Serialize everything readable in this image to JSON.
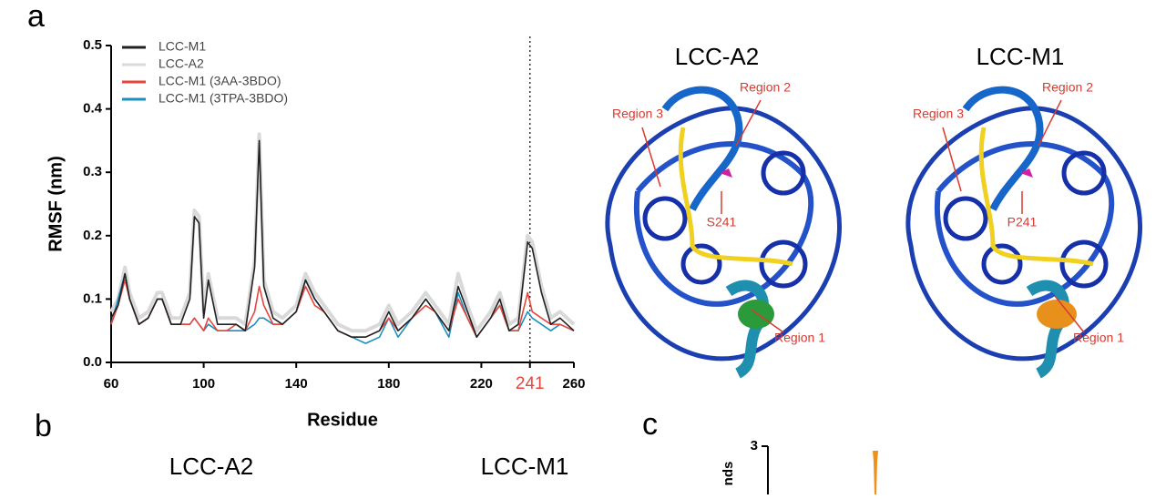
{
  "panel_labels": [
    "a",
    "b",
    "c"
  ],
  "chart_data": {
    "type": "line",
    "xlabel": "Residue",
    "ylabel": "RMSF (nm)",
    "x": [
      60,
      63,
      66,
      68,
      72,
      76,
      80,
      82,
      86,
      90,
      94,
      96,
      98,
      100,
      102,
      106,
      110,
      114,
      118,
      122,
      124,
      126,
      130,
      134,
      140,
      144,
      148,
      152,
      158,
      164,
      170,
      176,
      180,
      184,
      190,
      196,
      200,
      206,
      210,
      214,
      218,
      224,
      228,
      232,
      236,
      240,
      242,
      246,
      250,
      254,
      260
    ],
    "series": [
      {
        "name": "LCC-M1",
        "color": "#222222",
        "values": [
          0.07,
          0.09,
          0.14,
          0.1,
          0.06,
          0.07,
          0.1,
          0.1,
          0.06,
          0.06,
          0.1,
          0.23,
          0.22,
          0.07,
          0.13,
          0.06,
          0.06,
          0.06,
          0.05,
          0.15,
          0.35,
          0.12,
          0.07,
          0.06,
          0.08,
          0.13,
          0.1,
          0.08,
          0.05,
          0.04,
          0.04,
          0.05,
          0.08,
          0.05,
          0.07,
          0.1,
          0.08,
          0.05,
          0.12,
          0.08,
          0.04,
          0.07,
          0.1,
          0.05,
          0.06,
          0.19,
          0.18,
          0.11,
          0.06,
          0.07,
          0.05
        ]
      },
      {
        "name": "LCC-A2",
        "color": "#d9d9d9",
        "values": [
          0.08,
          0.1,
          0.15,
          0.11,
          0.07,
          0.08,
          0.11,
          0.11,
          0.07,
          0.07,
          0.11,
          0.24,
          0.23,
          0.08,
          0.14,
          0.07,
          0.07,
          0.07,
          0.06,
          0.16,
          0.36,
          0.13,
          0.08,
          0.07,
          0.09,
          0.14,
          0.11,
          0.09,
          0.06,
          0.05,
          0.05,
          0.06,
          0.09,
          0.06,
          0.08,
          0.11,
          0.09,
          0.06,
          0.14,
          0.09,
          0.05,
          0.08,
          0.11,
          0.06,
          0.07,
          0.2,
          0.19,
          0.12,
          0.07,
          0.08,
          0.06
        ]
      },
      {
        "name": "LCC-M1 (3AA-3BDO)",
        "color": "#e8463c",
        "values": [
          0.06,
          0.09,
          0.13,
          0.1,
          0.06,
          0.07,
          0.1,
          0.1,
          0.06,
          0.06,
          0.06,
          0.07,
          0.06,
          0.05,
          0.07,
          0.05,
          0.05,
          0.06,
          0.05,
          0.08,
          0.12,
          0.09,
          0.06,
          0.06,
          0.08,
          0.12,
          0.09,
          0.08,
          0.05,
          0.04,
          0.04,
          0.05,
          0.07,
          0.05,
          0.07,
          0.09,
          0.08,
          0.05,
          0.1,
          0.07,
          0.04,
          0.07,
          0.09,
          0.05,
          0.05,
          0.11,
          0.08,
          0.07,
          0.06,
          0.06,
          0.05
        ]
      },
      {
        "name": "LCC-M1 (3TPA-3BDO)",
        "color": "#1a8fc0",
        "values": [
          0.06,
          0.1,
          0.14,
          0.1,
          0.06,
          0.07,
          0.1,
          0.1,
          0.06,
          0.06,
          0.06,
          0.07,
          0.06,
          0.05,
          0.06,
          0.05,
          0.05,
          0.05,
          0.05,
          0.06,
          0.07,
          0.07,
          0.06,
          0.06,
          0.08,
          0.13,
          0.1,
          0.08,
          0.05,
          0.04,
          0.03,
          0.04,
          0.07,
          0.04,
          0.07,
          0.1,
          0.08,
          0.04,
          0.11,
          0.07,
          0.04,
          0.07,
          0.09,
          0.05,
          0.05,
          0.08,
          0.07,
          0.06,
          0.05,
          0.06,
          0.05
        ]
      }
    ],
    "xlim": [
      60,
      260
    ],
    "xticks": [
      60,
      100,
      140,
      180,
      220,
      241,
      260
    ],
    "ylim": [
      0,
      0.5
    ],
    "yticks": [
      {
        "value": 0,
        "label": "0.0"
      },
      0.1,
      0.2,
      0.3,
      0.4,
      0.5
    ],
    "vline_x": 241,
    "highlight_color": "#e8463c",
    "legend": "upper left"
  },
  "structures": [
    {
      "title": "LCC-A2",
      "residue": "S241",
      "regions": [
        "Region 1",
        "Region 2",
        "Region 3"
      ]
    },
    {
      "title": "LCC-M1",
      "residue": "P241",
      "regions": [
        "Region 1",
        "Region 2",
        "Region 3"
      ]
    }
  ],
  "panel_b": {
    "titles": [
      "LCC-A2",
      "LCC-M1"
    ]
  },
  "panel_c": {
    "ytick": "3",
    "ylabel": "nds"
  }
}
